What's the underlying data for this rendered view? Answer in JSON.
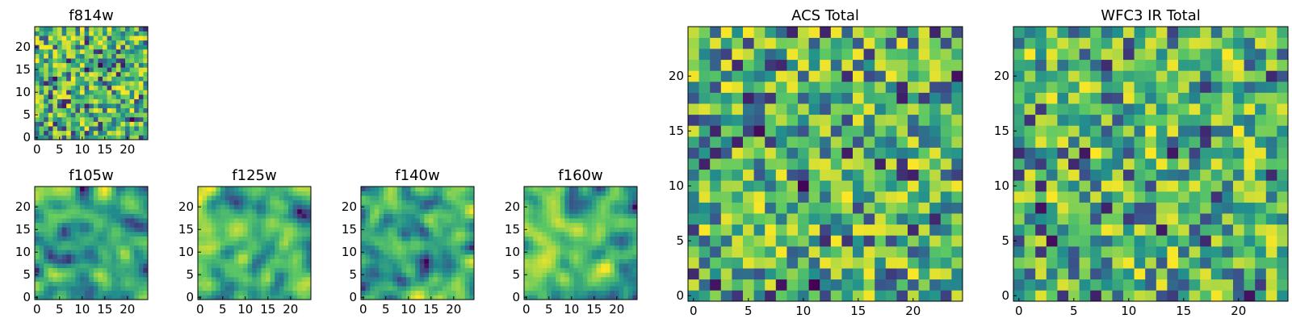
{
  "figure": {
    "background": "#ffffff",
    "colormap": "viridis",
    "colormap_stops": [
      "#440154",
      "#3b528b",
      "#21908d",
      "#5dc963",
      "#fde725"
    ]
  },
  "chart_data": [
    {
      "type": "heatmap",
      "title": "f814w",
      "grid_size": 25,
      "xticks": [
        0,
        5,
        10,
        15,
        20
      ],
      "yticks": [
        0,
        5,
        10,
        15,
        20
      ],
      "pattern": "pixel-noise",
      "seed": 11
    },
    {
      "type": "heatmap",
      "title": "f105w",
      "grid_size": 25,
      "xticks": [
        0,
        5,
        10,
        15,
        20
      ],
      "yticks": [
        0,
        5,
        10,
        15,
        20
      ],
      "pattern": "smooth-noise",
      "seed": 23
    },
    {
      "type": "heatmap",
      "title": "f125w",
      "grid_size": 25,
      "xticks": [
        0,
        5,
        10,
        15,
        20
      ],
      "yticks": [
        0,
        5,
        10,
        15,
        20
      ],
      "pattern": "smooth-noise",
      "seed": 37
    },
    {
      "type": "heatmap",
      "title": "f140w",
      "grid_size": 25,
      "xticks": [
        0,
        5,
        10,
        15,
        20
      ],
      "yticks": [
        0,
        5,
        10,
        15,
        20
      ],
      "pattern": "smooth-noise",
      "seed": 41
    },
    {
      "type": "heatmap",
      "title": "f160w",
      "grid_size": 25,
      "xticks": [
        0,
        5,
        10,
        15,
        20
      ],
      "yticks": [
        0,
        5,
        10,
        15,
        20
      ],
      "pattern": "smooth-noise",
      "seed": 53
    },
    {
      "type": "heatmap",
      "title": "ACS Total",
      "grid_size": 25,
      "xticks": [
        0,
        5,
        10,
        15,
        20
      ],
      "yticks": [
        0,
        5,
        10,
        15,
        20
      ],
      "pattern": "pixel-noise",
      "seed": 67
    },
    {
      "type": "heatmap",
      "title": "WFC3 IR Total",
      "grid_size": 25,
      "xticks": [
        0,
        5,
        10,
        15,
        20
      ],
      "yticks": [
        0,
        5,
        10,
        15,
        20
      ],
      "pattern": "pixel-noise",
      "seed": 79
    }
  ]
}
